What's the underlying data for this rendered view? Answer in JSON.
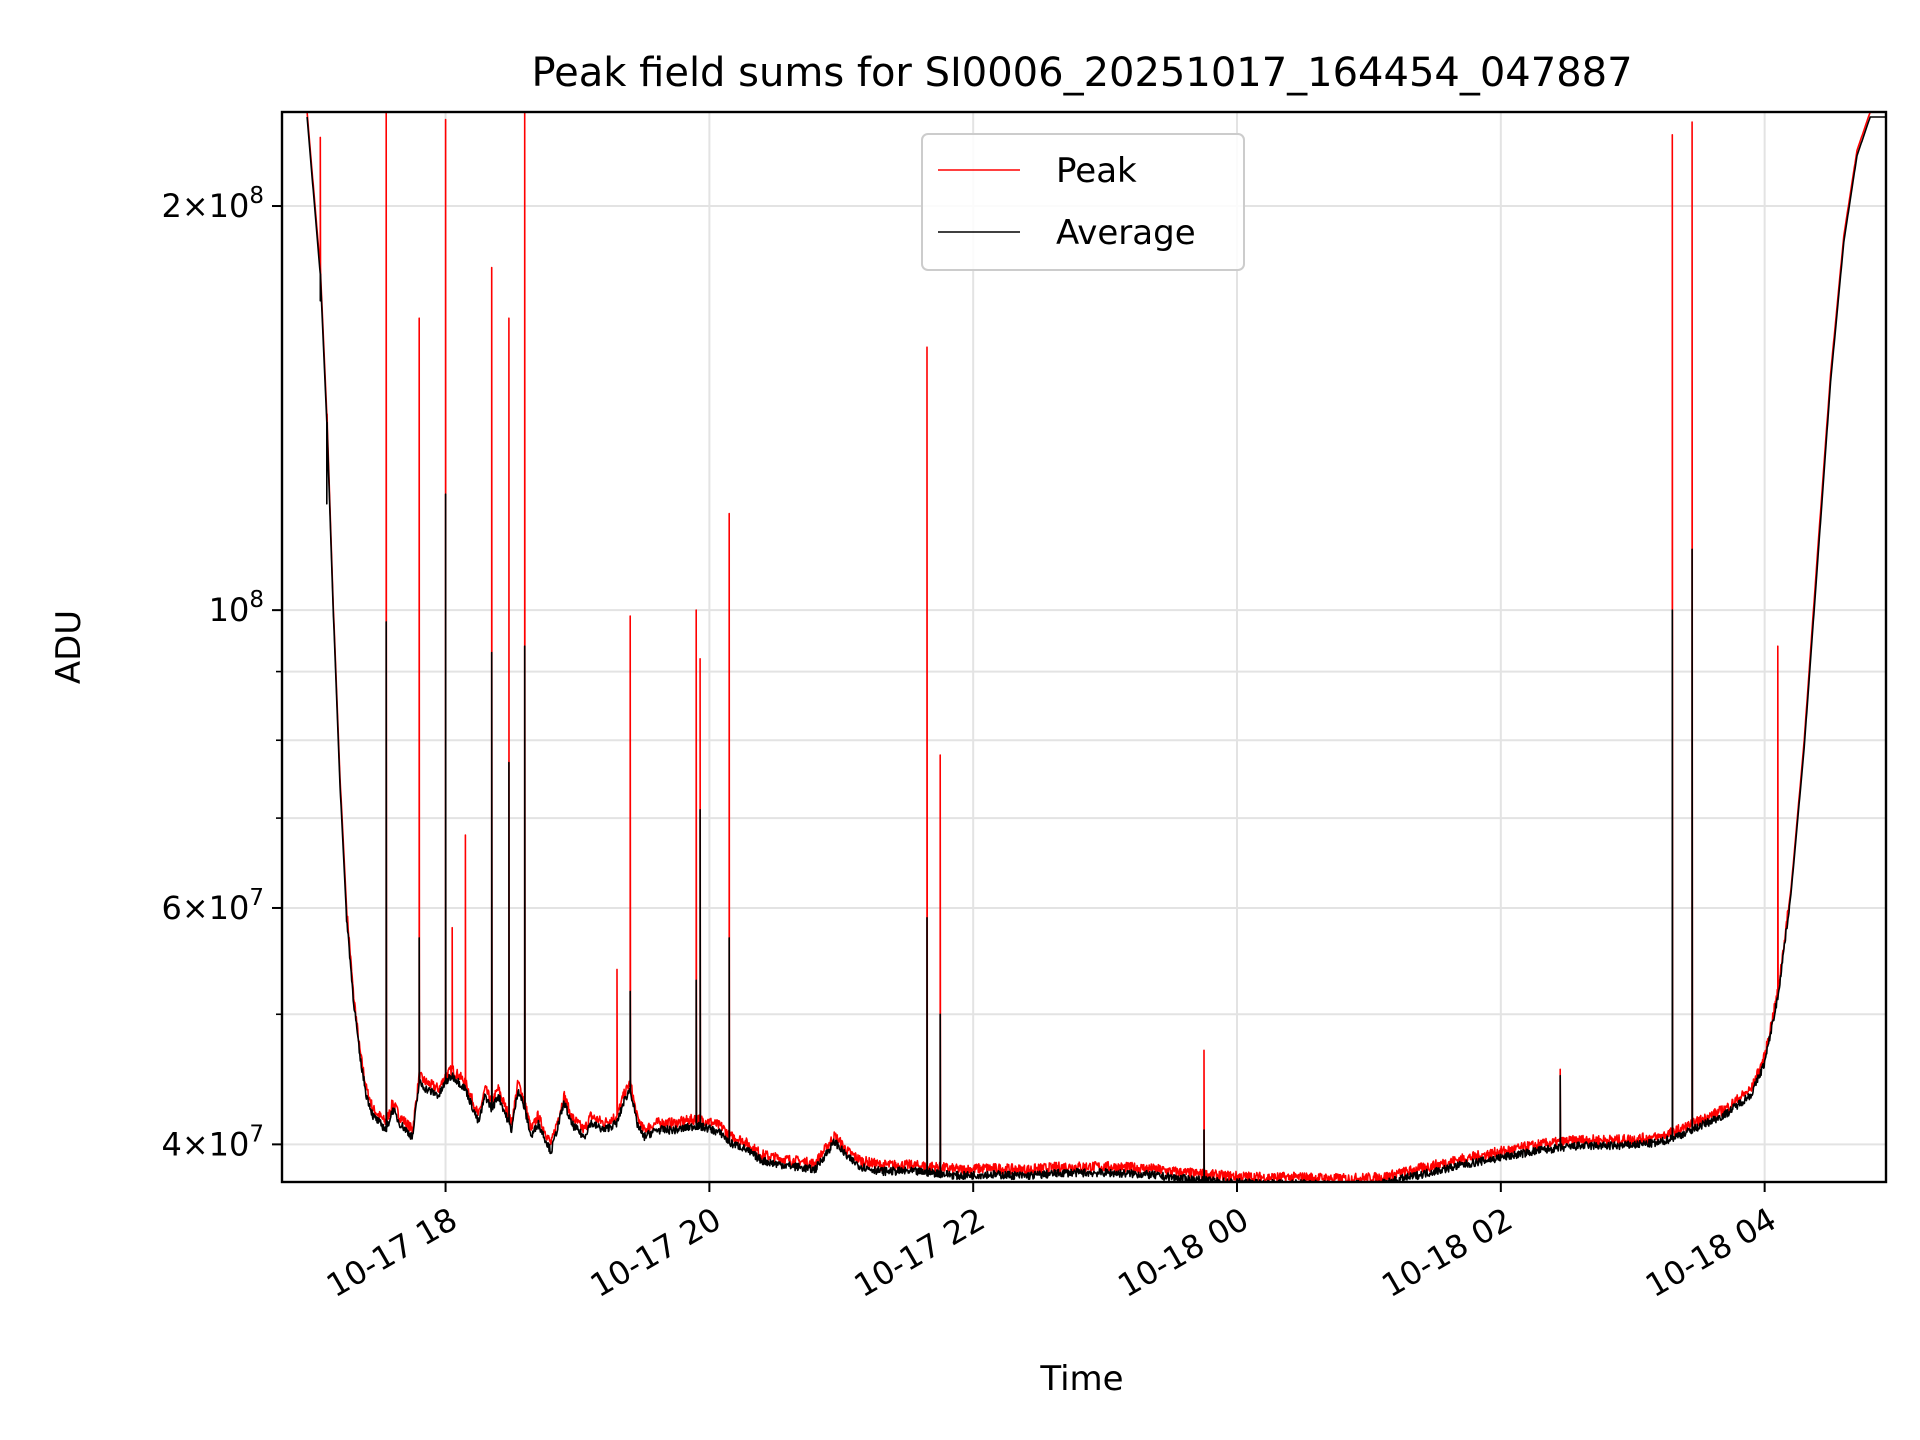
{
  "chart_data": {
    "type": "line",
    "title": "Peak field sums for SI0006_20251017_164454_047887",
    "xlabel": "Time",
    "ylabel": "ADU",
    "yscale": "log",
    "ylim": [
      37500000,
      235000000
    ],
    "xlim_hours": [
      16.76,
      4.92
    ],
    "x_tick_labels": [
      "10-17 18",
      "10-17 20",
      "10-17 22",
      "10-18 00",
      "10-18 02",
      "10-18 04"
    ],
    "x_tick_hours": [
      18,
      20,
      22,
      24,
      26,
      28
    ],
    "y_major_ticks": [
      {
        "value": 40000000,
        "mantissa": "4",
        "exp": "7"
      },
      {
        "value": 60000000,
        "mantissa": "6",
        "exp": "7"
      },
      {
        "value": 100000000,
        "mantissa": "",
        "exp": "8"
      },
      {
        "value": 200000000,
        "mantissa": "2",
        "exp": "8"
      }
    ],
    "y_minor_ticks": [
      50000000,
      70000000,
      80000000,
      90000000
    ],
    "grid": true,
    "legend_position": "top-center",
    "series": [
      {
        "name": "Peak",
        "color": "#ff0000",
        "hours": [
          16.95,
          17.05,
          17.1,
          17.15,
          17.2,
          17.25,
          17.3,
          17.35,
          17.4,
          17.45,
          17.5,
          17.55,
          17.6,
          17.65,
          17.75,
          17.8,
          17.85,
          17.95,
          18.0,
          18.05,
          18.15,
          18.25,
          18.3,
          18.35,
          18.4,
          18.5,
          18.55,
          18.6,
          18.65,
          18.7,
          18.8,
          18.9,
          18.95,
          19.05,
          19.1,
          19.2,
          19.3,
          19.35,
          19.4,
          19.45,
          19.5,
          19.6,
          19.75,
          19.9,
          20.0,
          20.1,
          20.15,
          20.25,
          20.4,
          20.5,
          20.65,
          20.8,
          20.95,
          21.05,
          21.15,
          21.3,
          21.5,
          21.7,
          21.9,
          22.1,
          22.4,
          22.7,
          23.0,
          23.3,
          23.6,
          23.9,
          24.2,
          24.5,
          24.8,
          25.1,
          25.4,
          25.7,
          26.0,
          26.3,
          26.6,
          26.9,
          27.2,
          27.4,
          27.7,
          27.9,
          28.0,
          28.1,
          28.2,
          28.3,
          28.4,
          28.5,
          28.6,
          28.7,
          28.8,
          28.92
        ],
        "values": [
          235000000,
          180000000,
          140000000,
          100000000,
          75000000,
          60000000,
          52000000,
          47000000,
          44000000,
          42500000,
          42000000,
          41500000,
          43000000,
          42000000,
          41000000,
          45000000,
          44500000,
          44000000,
          45000000,
          45500000,
          44500000,
          42000000,
          44000000,
          43000000,
          44000000,
          41500000,
          44500000,
          43000000,
          41000000,
          42000000,
          40000000,
          43500000,
          42000000,
          41000000,
          42000000,
          41500000,
          42000000,
          43500000,
          44500000,
          42000000,
          41000000,
          41500000,
          41500000,
          41800000,
          41600000,
          41200000,
          40600000,
          40300000,
          39300000,
          39100000,
          38900000,
          38700000,
          40600000,
          39500000,
          38900000,
          38600000,
          38600000,
          38500000,
          38300000,
          38400000,
          38300000,
          38500000,
          38500000,
          38400000,
          38100000,
          37900000,
          37800000,
          37800000,
          37700000,
          37800000,
          38400000,
          39000000,
          39500000,
          40000000,
          40300000,
          40300000,
          40500000,
          41200000,
          42500000,
          44000000,
          46500000,
          52000000,
          62000000,
          80000000,
          110000000,
          150000000,
          190000000,
          220000000,
          235000000,
          235000000
        ],
        "spikes": [
          [
            17.05,
            225000000
          ],
          [
            17.1,
            140000000
          ],
          [
            17.55,
            235000000
          ],
          [
            17.8,
            165000000
          ],
          [
            18.0,
            232000000
          ],
          [
            18.05,
            58000000
          ],
          [
            18.15,
            68000000
          ],
          [
            18.35,
            180000000
          ],
          [
            18.48,
            165000000
          ],
          [
            18.6,
            235000000
          ],
          [
            19.3,
            54000000
          ],
          [
            19.4,
            99000000
          ],
          [
            19.9,
            100000000
          ],
          [
            19.93,
            92000000
          ],
          [
            20.15,
            118000000
          ],
          [
            21.65,
            157000000
          ],
          [
            21.75,
            78000000
          ],
          [
            23.75,
            47000000
          ],
          [
            26.45,
            45500000
          ],
          [
            27.3,
            226000000
          ],
          [
            27.45,
            231000000
          ],
          [
            28.1,
            94000000
          ]
        ]
      },
      {
        "name": "Average",
        "color": "#000000",
        "hours": [
          16.95,
          17.05,
          17.1,
          17.15,
          17.2,
          17.25,
          17.3,
          17.35,
          17.4,
          17.45,
          17.5,
          17.55,
          17.6,
          17.65,
          17.75,
          17.8,
          17.85,
          17.95,
          18.0,
          18.05,
          18.15,
          18.25,
          18.3,
          18.35,
          18.4,
          18.5,
          18.55,
          18.6,
          18.65,
          18.7,
          18.8,
          18.9,
          18.95,
          19.05,
          19.1,
          19.2,
          19.3,
          19.35,
          19.4,
          19.45,
          19.5,
          19.6,
          19.75,
          19.9,
          20.0,
          20.1,
          20.15,
          20.25,
          20.4,
          20.5,
          20.65,
          20.8,
          20.95,
          21.05,
          21.15,
          21.3,
          21.5,
          21.7,
          21.9,
          22.1,
          22.4,
          22.7,
          23.0,
          23.3,
          23.6,
          23.9,
          24.2,
          24.5,
          24.8,
          25.1,
          25.4,
          25.7,
          26.0,
          26.3,
          26.6,
          26.9,
          27.2,
          27.4,
          27.7,
          27.9,
          28.0,
          28.1,
          28.2,
          28.3,
          28.4,
          28.5,
          28.6,
          28.7,
          28.8,
          28.92
        ],
        "values": [
          233000000,
          178000000,
          138000000,
          99000000,
          74000000,
          59000000,
          51500000,
          46500000,
          43500000,
          42000000,
          41500000,
          41000000,
          42500000,
          41500000,
          40500000,
          44500000,
          44000000,
          43500000,
          44500000,
          45000000,
          44000000,
          41500000,
          43500000,
          42500000,
          43500000,
          41000000,
          44000000,
          42500000,
          40500000,
          41500000,
          39500000,
          43000000,
          41500000,
          40500000,
          41500000,
          41000000,
          41500000,
          43000000,
          44000000,
          41500000,
          40500000,
          41000000,
          41000000,
          41300000,
          41100000,
          40700000,
          40100000,
          39800000,
          38900000,
          38700000,
          38500000,
          38300000,
          40200000,
          39100000,
          38500000,
          38200000,
          38200000,
          38100000,
          37900000,
          38000000,
          37900000,
          38100000,
          38100000,
          38000000,
          37700000,
          37500000,
          37400000,
          37400000,
          37300000,
          37400000,
          38000000,
          38600000,
          39100000,
          39600000,
          39900000,
          39900000,
          40100000,
          40800000,
          42100000,
          43600000,
          46000000,
          51500000,
          61500000,
          79000000,
          108000000,
          148000000,
          188000000,
          218000000,
          233000000,
          233000000
        ],
        "spikes": [
          [
            17.05,
            170000000
          ],
          [
            17.1,
            120000000
          ],
          [
            17.55,
            98000000
          ],
          [
            17.8,
            57000000
          ],
          [
            18.0,
            122000000
          ],
          [
            18.35,
            93000000
          ],
          [
            18.48,
            77000000
          ],
          [
            18.6,
            94000000
          ],
          [
            19.4,
            52000000
          ],
          [
            19.9,
            53000000
          ],
          [
            19.93,
            71000000
          ],
          [
            20.15,
            57000000
          ],
          [
            21.65,
            59000000
          ],
          [
            21.75,
            50000000
          ],
          [
            23.75,
            41000000
          ],
          [
            26.45,
            45000000
          ],
          [
            27.3,
            100000000
          ],
          [
            27.45,
            111000000
          ]
        ]
      }
    ]
  }
}
